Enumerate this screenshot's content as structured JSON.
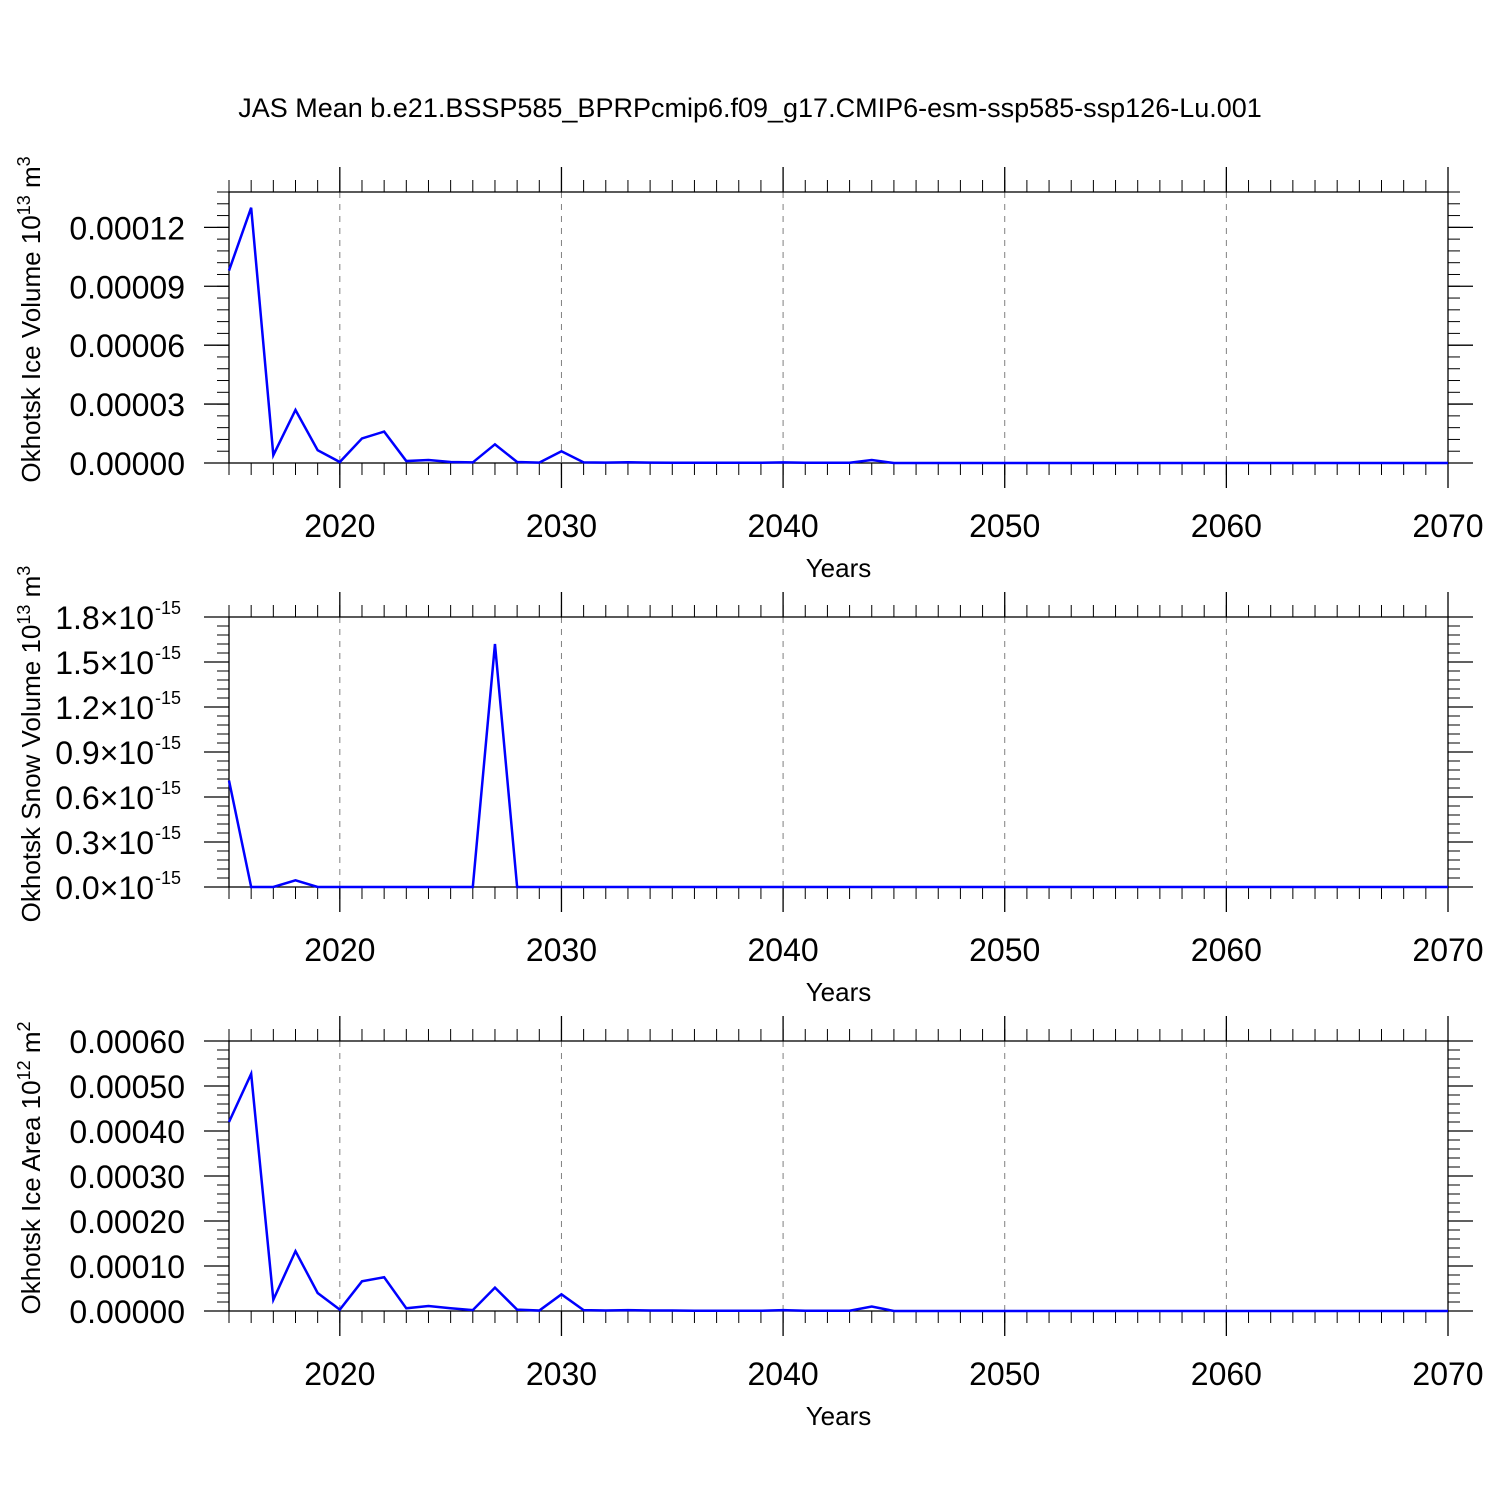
{
  "title": "JAS Mean b.e21.BSSP585_BPRPcmip6.f09_g17.CMIP6-esm-ssp585-ssp126-Lu.001",
  "colors": {
    "line": "#0000ff",
    "axis": "#000000",
    "grid": "#808080"
  },
  "chart_data": [
    {
      "type": "line",
      "ylabel": {
        "main": "Okhotsk Ice Volume 10",
        "exp": "13",
        "unit": " m",
        "unit_exp": "3"
      },
      "xlabel": "Years",
      "xlim": [
        2015,
        2070
      ],
      "ylim": [
        0,
        0.000138
      ],
      "x_ticks": [
        2020,
        2030,
        2040,
        2050,
        2060,
        2070
      ],
      "x_tick_labels": [
        "2020",
        "2030",
        "2040",
        "2050",
        "2060",
        "2070"
      ],
      "y_ticks": [
        0,
        3e-05,
        6e-05,
        9e-05,
        0.00012
      ],
      "y_tick_labels": [
        "0.00000",
        "0.00003",
        "0.00006",
        "0.00009",
        "0.00012"
      ],
      "y_tick_exp": "",
      "grid": "vertical dashed at major x ticks",
      "x": [
        2015,
        2016,
        2017,
        2018,
        2019,
        2020,
        2021,
        2022,
        2023,
        2024,
        2025,
        2026,
        2027,
        2028,
        2029,
        2030,
        2031,
        2032,
        2033,
        2034,
        2035,
        2036,
        2037,
        2038,
        2039,
        2040,
        2041,
        2042,
        2043,
        2044,
        2045,
        2046,
        2047,
        2048,
        2049,
        2050,
        2051,
        2052,
        2053,
        2054,
        2055,
        2056,
        2057,
        2058,
        2059,
        2060,
        2061,
        2062,
        2063,
        2064,
        2065,
        2066,
        2067,
        2068,
        2069,
        2070
      ],
      "y": [
        9.8e-05,
        0.00013,
        4e-06,
        2.7e-05,
        6.5e-06,
        5e-07,
        1.25e-05,
        1.6e-05,
        1e-06,
        1.5e-06,
        5e-07,
        3e-07,
        9.5e-06,
        5e-07,
        2e-07,
        6e-06,
        3e-07,
        2e-07,
        4e-07,
        2e-07,
        1e-07,
        1e-07,
        1e-07,
        1e-07,
        1e-07,
        3e-07,
        1e-07,
        1e-07,
        1e-07,
        1.5e-06,
        0,
        0,
        0,
        0,
        0,
        0,
        0,
        0,
        0,
        0,
        0,
        0,
        0,
        0,
        0,
        0,
        0,
        0,
        0,
        0,
        0,
        0,
        0,
        0,
        0,
        0
      ]
    },
    {
      "type": "line",
      "ylabel": {
        "main": "Okhotsk Snow Volume 10",
        "exp": "13",
        "unit": " m",
        "unit_exp": "3"
      },
      "xlabel": "Years",
      "xlim": [
        2015,
        2070
      ],
      "ylim": [
        0,
        1.8
      ],
      "x_ticks": [
        2020,
        2030,
        2040,
        2050,
        2060,
        2070
      ],
      "x_tick_labels": [
        "2020",
        "2030",
        "2040",
        "2050",
        "2060",
        "2070"
      ],
      "y_ticks": [
        0,
        0.3,
        0.6,
        0.9,
        1.2,
        1.5,
        1.8
      ],
      "y_tick_labels": [
        "0.0×10",
        "0.3×10",
        "0.6×10",
        "0.9×10",
        "1.2×10",
        "1.5×10",
        "1.8×10"
      ],
      "y_tick_exp": "-15",
      "grid": "vertical dashed at major x ticks",
      "x": [
        2015,
        2016,
        2017,
        2018,
        2019,
        2020,
        2021,
        2022,
        2023,
        2024,
        2025,
        2026,
        2027,
        2028,
        2029,
        2030,
        2031,
        2032,
        2033,
        2034,
        2035,
        2036,
        2037,
        2038,
        2039,
        2040,
        2041,
        2042,
        2043,
        2044,
        2045,
        2046,
        2047,
        2048,
        2049,
        2050,
        2051,
        2052,
        2053,
        2054,
        2055,
        2056,
        2057,
        2058,
        2059,
        2060,
        2061,
        2062,
        2063,
        2064,
        2065,
        2066,
        2067,
        2068,
        2069,
        2070
      ],
      "y": [
        0.71,
        0,
        0,
        0.045,
        0,
        0,
        0,
        0,
        0,
        0,
        0,
        0,
        1.62,
        0,
        0,
        0,
        0,
        0,
        0,
        0,
        0,
        0,
        0,
        0,
        0,
        0,
        0,
        0,
        0,
        0,
        0,
        0,
        0,
        0,
        0,
        0,
        0,
        0,
        0,
        0,
        0,
        0,
        0,
        0,
        0,
        0,
        0,
        0,
        0,
        0,
        0,
        0,
        0,
        0,
        0,
        0
      ]
    },
    {
      "type": "line",
      "ylabel": {
        "main": "Okhotsk Ice Area 10",
        "exp": "12",
        "unit": " m",
        "unit_exp": "2"
      },
      "xlabel": "Years",
      "xlim": [
        2015,
        2070
      ],
      "ylim": [
        0,
        0.0006
      ],
      "x_ticks": [
        2020,
        2030,
        2040,
        2050,
        2060,
        2070
      ],
      "x_tick_labels": [
        "2020",
        "2030",
        "2040",
        "2050",
        "2060",
        "2070"
      ],
      "y_ticks": [
        0,
        0.0001,
        0.0002,
        0.0003,
        0.0004,
        0.0005,
        0.0006
      ],
      "y_tick_labels": [
        "0.00000",
        "0.00010",
        "0.00020",
        "0.00030",
        "0.00040",
        "0.00050",
        "0.00060"
      ],
      "y_tick_exp": "",
      "grid": "vertical dashed at major x ticks",
      "x": [
        2015,
        2016,
        2017,
        2018,
        2019,
        2020,
        2021,
        2022,
        2023,
        2024,
        2025,
        2026,
        2027,
        2028,
        2029,
        2030,
        2031,
        2032,
        2033,
        2034,
        2035,
        2036,
        2037,
        2038,
        2039,
        2040,
        2041,
        2042,
        2043,
        2044,
        2045,
        2046,
        2047,
        2048,
        2049,
        2050,
        2051,
        2052,
        2053,
        2054,
        2055,
        2056,
        2057,
        2058,
        2059,
        2060,
        2061,
        2062,
        2063,
        2064,
        2065,
        2066,
        2067,
        2068,
        2069,
        2070
      ],
      "y": [
        0.00042,
        0.000527,
        2.5e-05,
        0.000133,
        4e-05,
        3e-06,
        6.6e-05,
        7.5e-05,
        6e-06,
        1.1e-05,
        6e-06,
        2e-06,
        5.2e-05,
        3e-06,
        1e-06,
        3.7e-05,
        2e-06,
        1e-06,
        2e-06,
        1e-06,
        1e-06,
        5e-07,
        5e-07,
        5e-07,
        5e-07,
        2e-06,
        5e-07,
        5e-07,
        5e-07,
        1e-05,
        0,
        0,
        0,
        0,
        0,
        0,
        0,
        0,
        0,
        0,
        0,
        0,
        0,
        0,
        0,
        0,
        0,
        0,
        0,
        0,
        0,
        0,
        0,
        0,
        0,
        0
      ]
    }
  ]
}
